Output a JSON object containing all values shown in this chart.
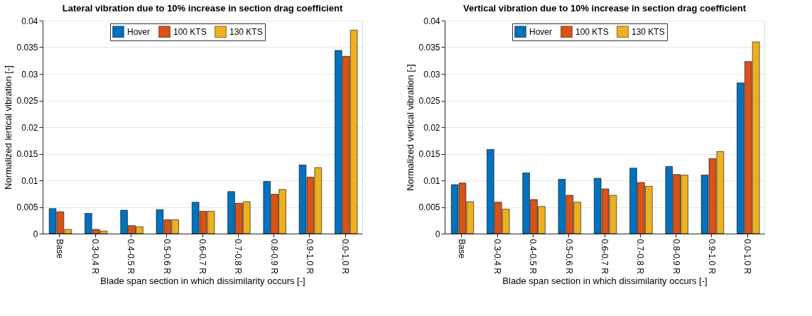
{
  "chart_data": [
    {
      "type": "bar",
      "title": "Lateral vibration due to 10% increase in section drag coefficient",
      "xlabel": "Blade span section in which dissimilarity occurs [-]",
      "ylabel": "Normalized lertical vibration [-]",
      "categories": [
        "Base",
        "0.3-0.4 R",
        "0.4-0.5 R",
        "0.5-0.6 R",
        "0.6-0.7 R",
        "0.7-0.8 R",
        "0.8-0.9 R",
        "0.9-1.0 R",
        "0.0-1.0 R"
      ],
      "series": [
        {
          "name": "Hover",
          "color": "#0072bd",
          "values": [
            0.0047,
            0.0038,
            0.0044,
            0.0045,
            0.0059,
            0.0079,
            0.0098,
            0.0129,
            0.0344
          ]
        },
        {
          "name": "100 KTS",
          "color": "#d95319",
          "values": [
            0.0041,
            0.0008,
            0.0015,
            0.0026,
            0.0042,
            0.0057,
            0.0074,
            0.0106,
            0.0333
          ]
        },
        {
          "name": "130 KTS",
          "color": "#edb120",
          "values": [
            0.0008,
            0.0005,
            0.0013,
            0.0026,
            0.0042,
            0.006,
            0.0083,
            0.0124,
            0.0382
          ]
        }
      ],
      "ylim": [
        0,
        0.04
      ],
      "yticks": [
        0,
        0.005,
        0.01,
        0.015,
        0.02,
        0.025,
        0.03,
        0.035,
        0.04
      ],
      "grid": "y",
      "legend": "top"
    },
    {
      "type": "bar",
      "title": "Vertical vibration due to 10% increase in section drag coefficient",
      "xlabel": "Blade span section in which dissimilarity occurs [-]",
      "ylabel": "Normalized vertical vibration [-]",
      "categories": [
        "Base",
        "0.3-0.4 R",
        "0.4-0.5 R",
        "0.5-0.6 R",
        "0.6-0.7 R",
        "0.7-0.8 R",
        "0.8-0.9 R",
        "0.9-1.0 R",
        "0.0-1.0 R"
      ],
      "series": [
        {
          "name": "Hover",
          "color": "#0072bd",
          "values": [
            0.0092,
            0.0158,
            0.0114,
            0.0102,
            0.0104,
            0.0123,
            0.0126,
            0.011,
            0.0283
          ]
        },
        {
          "name": "100 KTS",
          "color": "#d95319",
          "values": [
            0.0095,
            0.0059,
            0.0064,
            0.0072,
            0.0084,
            0.0096,
            0.0111,
            0.0141,
            0.0323
          ]
        },
        {
          "name": "130 KTS",
          "color": "#edb120",
          "values": [
            0.006,
            0.0046,
            0.0051,
            0.0059,
            0.0072,
            0.0089,
            0.011,
            0.0154,
            0.036
          ]
        }
      ],
      "ylim": [
        0,
        0.04
      ],
      "yticks": [
        0,
        0.005,
        0.01,
        0.015,
        0.02,
        0.025,
        0.03,
        0.035,
        0.04
      ],
      "grid": "y",
      "legend": "top"
    }
  ]
}
